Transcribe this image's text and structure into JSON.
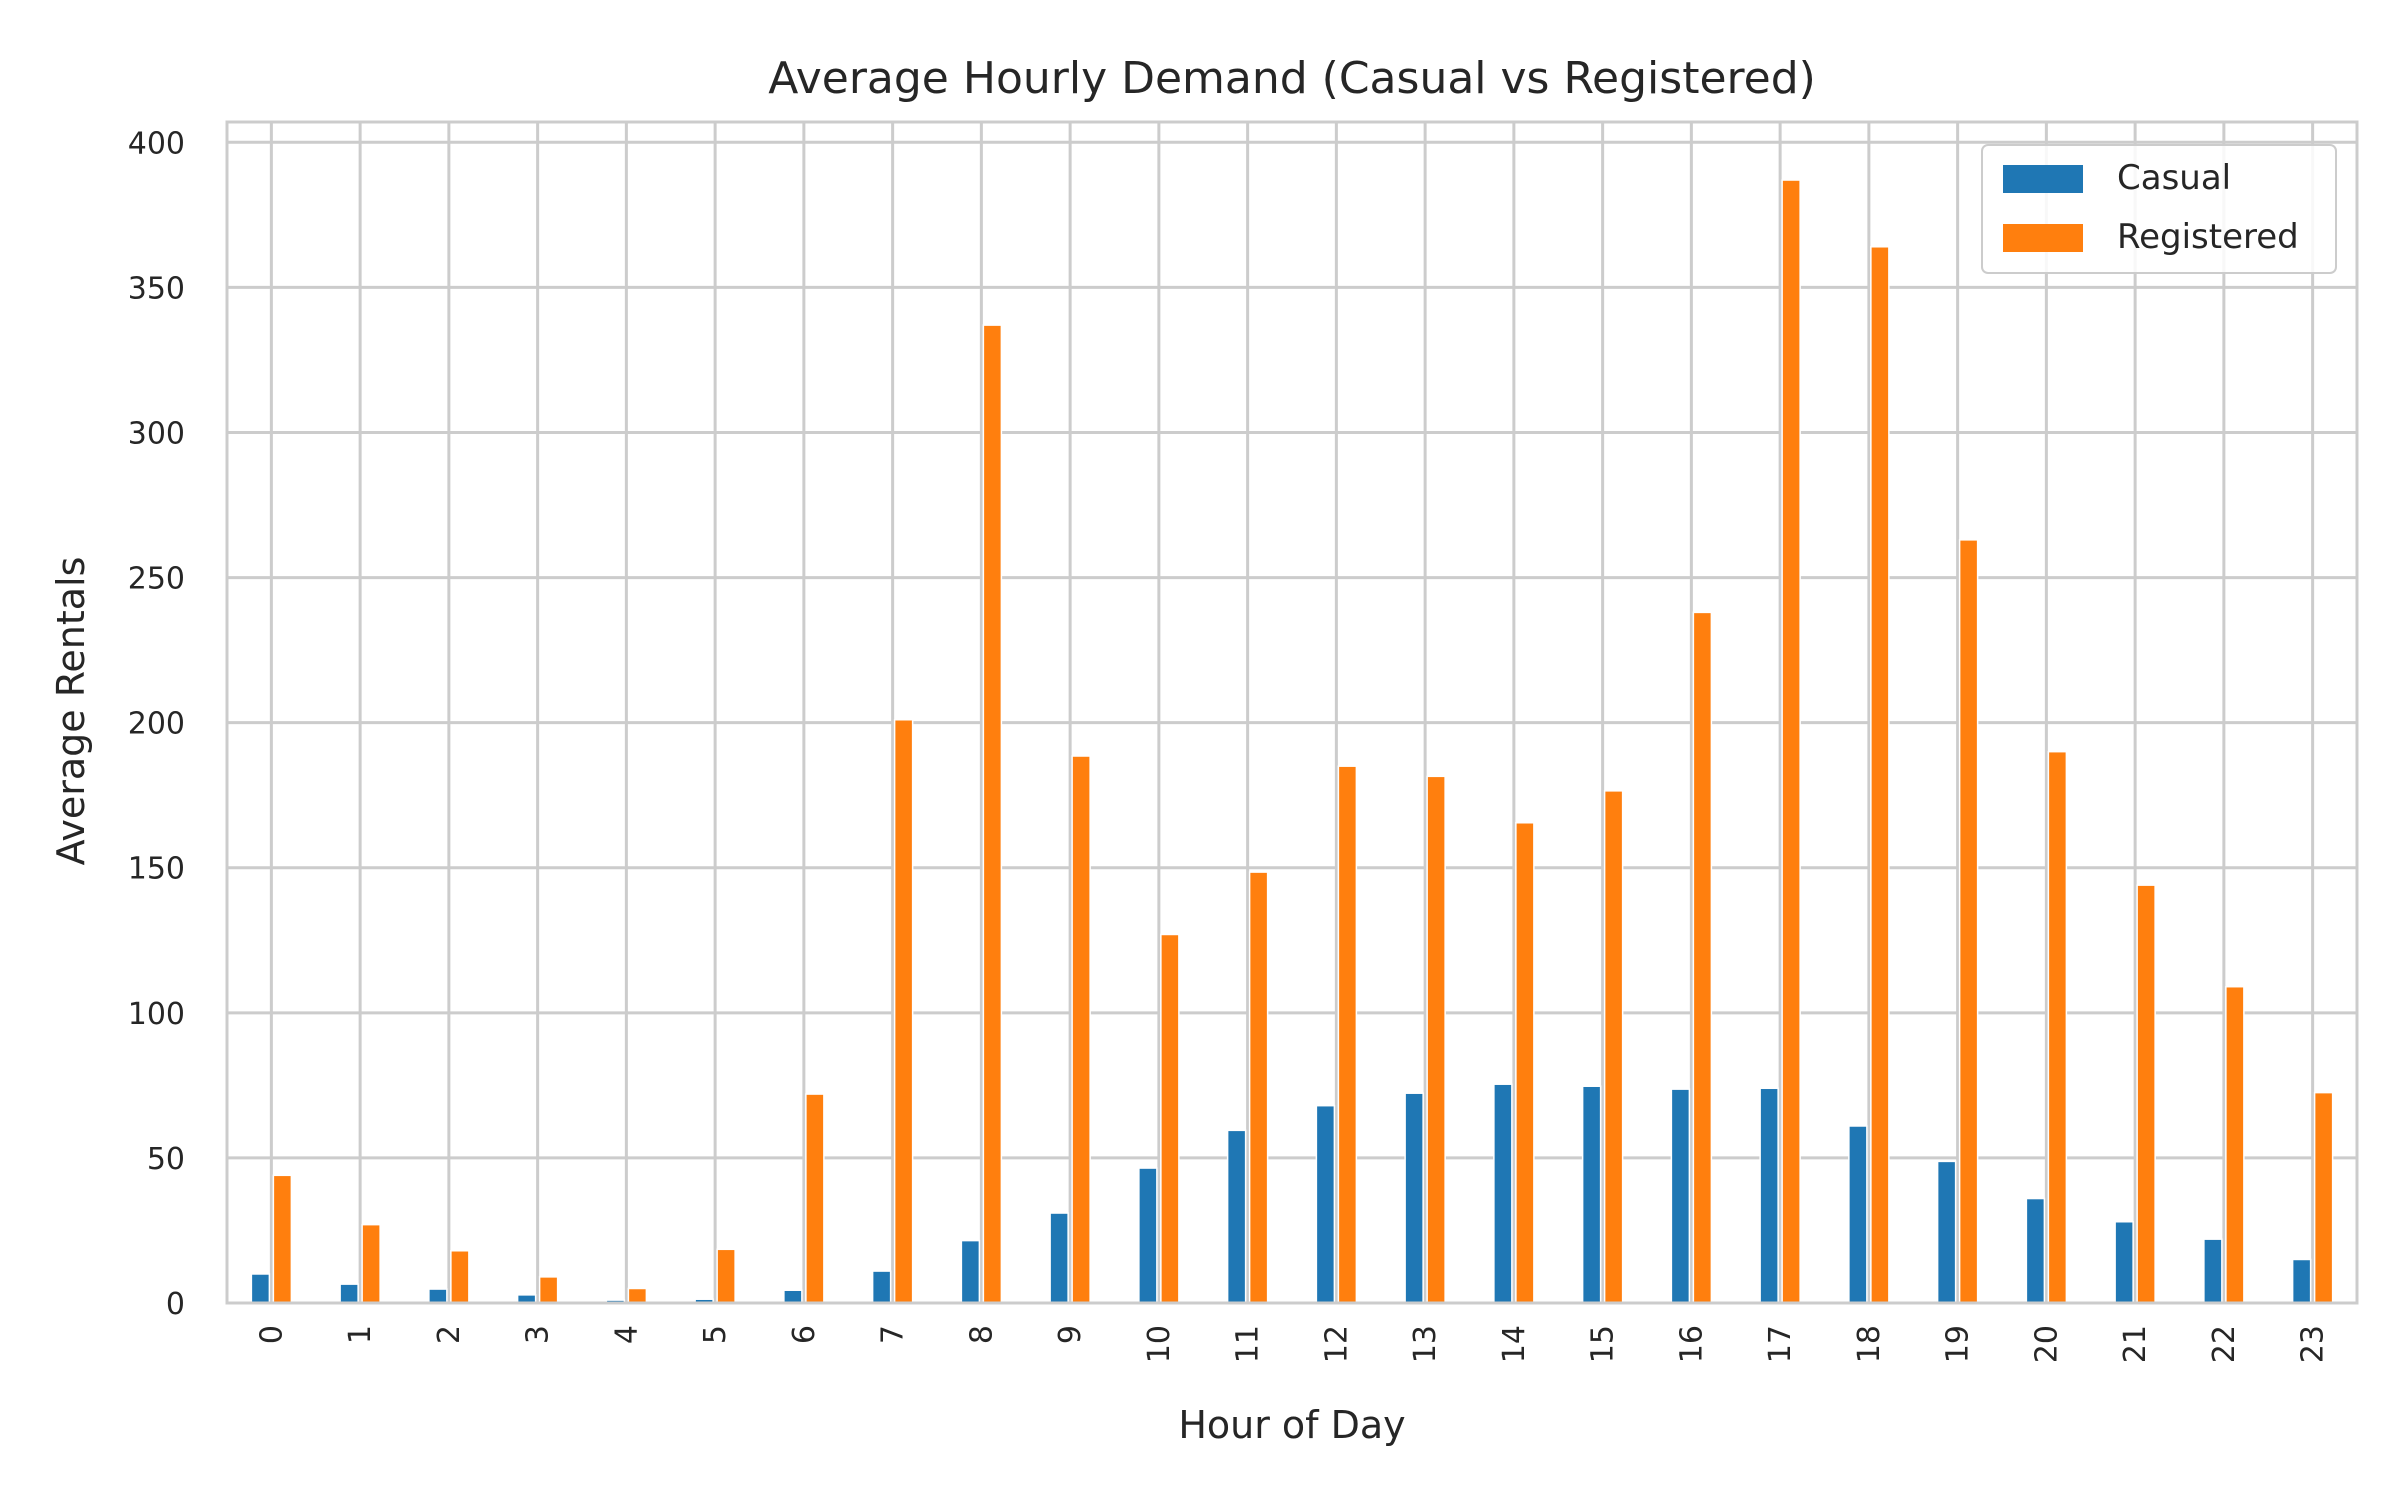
{
  "chart_data": {
    "type": "bar",
    "title": "Average Hourly Demand (Casual vs Registered)",
    "xlabel": "Hour of Day",
    "ylabel": "Average Rentals",
    "categories": [
      "0",
      "1",
      "2",
      "3",
      "4",
      "5",
      "6",
      "7",
      "8",
      "9",
      "10",
      "11",
      "12",
      "13",
      "14",
      "15",
      "16",
      "17",
      "18",
      "19",
      "20",
      "21",
      "22",
      "23"
    ],
    "series": [
      {
        "name": "Casual",
        "color": "#1f77b4",
        "values": [
          10,
          6.5,
          4.8,
          2.8,
          1,
          1.3,
          4.4,
          11,
          21.5,
          31,
          46.5,
          59.5,
          68,
          72.3,
          75.4,
          74.7,
          73.7,
          74,
          61,
          48.8,
          36,
          28,
          22,
          15
        ]
      },
      {
        "name": "Registered",
        "color": "#ff7f0e",
        "values": [
          44,
          27,
          18,
          9,
          5,
          18.5,
          72,
          201,
          337,
          188.5,
          127,
          148.5,
          185,
          181.5,
          165.5,
          176.5,
          238,
          387,
          364,
          263,
          190,
          144,
          109,
          72.5
        ]
      }
    ],
    "ylim": [
      0,
      407
    ],
    "yticks": [
      "0",
      "50",
      "100",
      "150",
      "200",
      "250",
      "300",
      "350",
      "400"
    ],
    "grid": true,
    "legend_position": "top-right"
  }
}
